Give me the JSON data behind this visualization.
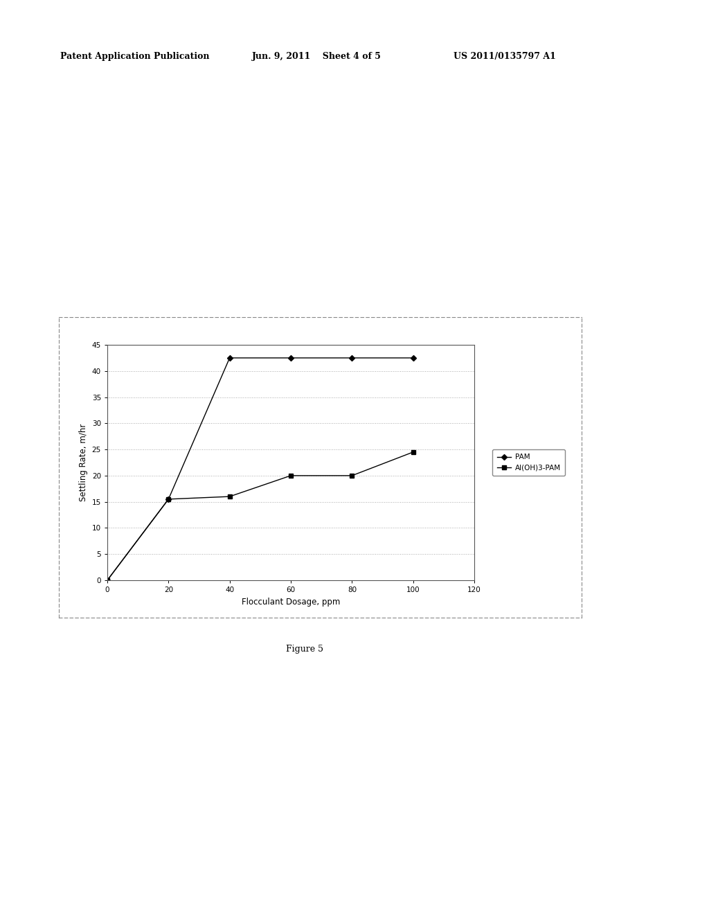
{
  "pam_x": [
    0,
    20,
    40,
    60,
    80,
    100
  ],
  "pam_y": [
    0,
    15.5,
    42.5,
    42.5,
    42.5,
    42.5
  ],
  "aloh3pam_x": [
    0,
    20,
    40,
    60,
    80,
    100
  ],
  "aloh3pam_y": [
    0,
    15.5,
    16,
    20,
    20,
    24.5
  ],
  "pam_label": "PAM",
  "aloh3pam_label": "Al(OH)3-PAM",
  "xlabel": "Flocculant Dosage, ppm",
  "ylabel": "Settling Rate, m/hr",
  "xlim": [
    0,
    120
  ],
  "ylim": [
    0,
    45
  ],
  "xticks": [
    0,
    20,
    40,
    60,
    80,
    100,
    120
  ],
  "yticks": [
    0,
    5,
    10,
    15,
    20,
    25,
    30,
    35,
    40,
    45
  ],
  "figure_caption": "Figure 5",
  "header_left": "Patent Application Publication",
  "header_mid": "Jun. 9, 2011    Sheet 4 of 5",
  "header_right": "US 2011/0135797 A1",
  "line_color": "#000000",
  "marker_style_pam": "D",
  "marker_style_aloh3": "s",
  "bg_color": "#ffffff",
  "plot_bg_color": "#ffffff",
  "grid_color": "#aaaaaa",
  "border_color": "#555555",
  "outer_border_color": "#888888"
}
